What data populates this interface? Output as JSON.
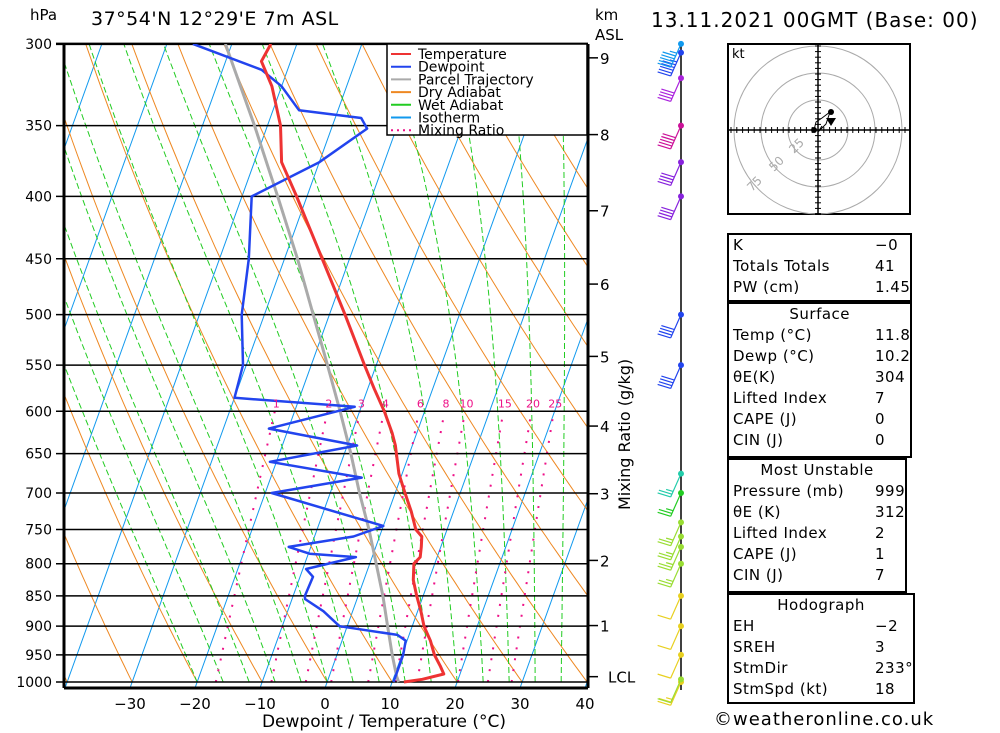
{
  "header": {
    "unit_label": "hPa",
    "location": "37°54'N  12°29'E  7m  ASL",
    "datetime": "13.11.2021  00GMT  (Base: 00)",
    "km_label_1": "km",
    "km_label_2": "ASL"
  },
  "legend": [
    {
      "label": "Temperature",
      "color": "#ee3333",
      "style": "solid"
    },
    {
      "label": "Dewpoint",
      "color": "#2244ee",
      "style": "solid"
    },
    {
      "label": "Parcel Trajectory",
      "color": "#aaaaaa",
      "style": "solid"
    },
    {
      "label": "Dry Adiabat",
      "color": "#ee8822",
      "style": "solid"
    },
    {
      "label": "Wet Adiabat",
      "color": "#22cc22",
      "style": "solid"
    },
    {
      "label": "Isotherm",
      "color": "#1199ee",
      "style": "solid"
    },
    {
      "label": "Mixing Ratio",
      "color": "#ee1188",
      "style": "dotted"
    }
  ],
  "chart_data": {
    "type": "line",
    "title": "37°54'N 12°29'E 7m ASL — Skew-T log-P sounding",
    "xlabel": "Dewpoint / Temperature (°C)",
    "ylabel": "hPa",
    "xlim": [
      -40,
      40
    ],
    "ylim": [
      1000,
      300
    ],
    "x_ticks": [
      -30,
      -20,
      -10,
      0,
      10,
      20,
      30,
      40
    ],
    "y_ticks": [
      300,
      350,
      400,
      450,
      500,
      550,
      600,
      650,
      700,
      750,
      800,
      850,
      900,
      950,
      1000
    ],
    "height_ticks": [
      {
        "label": "9",
        "p": 308
      },
      {
        "label": "8",
        "p": 356
      },
      {
        "label": "7",
        "p": 411
      },
      {
        "label": "6",
        "p": 472
      },
      {
        "label": "5",
        "p": 541
      },
      {
        "label": "4",
        "p": 617
      },
      {
        "label": "3",
        "p": 701
      },
      {
        "label": "2",
        "p": 795
      },
      {
        "label": "1",
        "p": 899
      },
      {
        "label": "LCL",
        "p": 990
      }
    ],
    "right_axis_label": "Mixing Ratio (g/kg)",
    "mixing_ratio_labels": [
      "1",
      "2",
      "3",
      "4",
      "6",
      "8",
      "10",
      "15",
      "20",
      "25"
    ],
    "mixing_ratio_values": [
      1,
      2,
      3,
      4,
      6,
      8,
      10,
      15,
      20,
      25
    ],
    "series": [
      {
        "name": "Temperature",
        "points": [
          [
            1000,
            11.8
          ],
          [
            995,
            14.5
          ],
          [
            985,
            17.5
          ],
          [
            970,
            16.5
          ],
          [
            950,
            15.0
          ],
          [
            925,
            13.6
          ],
          [
            900,
            11.8
          ],
          [
            875,
            10.5
          ],
          [
            850,
            9.0
          ],
          [
            825,
            7.6
          ],
          [
            800,
            6.8
          ],
          [
            790,
            7.4
          ],
          [
            775,
            7.0
          ],
          [
            760,
            6.5
          ],
          [
            750,
            5.2
          ],
          [
            725,
            3.5
          ],
          [
            700,
            1.5
          ],
          [
            675,
            -0.5
          ],
          [
            650,
            -2.0
          ],
          [
            640,
            -2.6
          ],
          [
            625,
            -3.8
          ],
          [
            600,
            -6.2
          ],
          [
            575,
            -9.0
          ],
          [
            550,
            -11.8
          ],
          [
            500,
            -17.6
          ],
          [
            450,
            -24.2
          ],
          [
            400,
            -31.6
          ],
          [
            375,
            -35.8
          ],
          [
            350,
            -38.0
          ],
          [
            325,
            -41.5
          ],
          [
            310,
            -44.5
          ],
          [
            300,
            -44.0
          ]
        ]
      },
      {
        "name": "Dewpoint",
        "points": [
          [
            1000,
            10.2
          ],
          [
            975,
            10.2
          ],
          [
            950,
            10.2
          ],
          [
            925,
            9.8
          ],
          [
            915,
            8.2
          ],
          [
            900,
            -1.2
          ],
          [
            875,
            -4.5
          ],
          [
            855,
            -8.0
          ],
          [
            850,
            -8.2
          ],
          [
            820,
            -8.0
          ],
          [
            808,
            -9.5
          ],
          [
            790,
            -2.5
          ],
          [
            785,
            -9.8
          ],
          [
            775,
            -13.4
          ],
          [
            760,
            -4.0
          ],
          [
            745,
            0.0
          ],
          [
            700,
            -19.0
          ],
          [
            680,
            -6.0
          ],
          [
            660,
            -21.0
          ],
          [
            640,
            -8.5
          ],
          [
            620,
            -23.0
          ],
          [
            595,
            -11.0
          ],
          [
            585,
            -30.0
          ],
          [
            550,
            -30.5
          ],
          [
            500,
            -33.5
          ],
          [
            450,
            -35.5
          ],
          [
            400,
            -38.5
          ],
          [
            375,
            -30.0
          ],
          [
            352,
            -24.5
          ],
          [
            345,
            -26.0
          ],
          [
            340,
            -36.0
          ],
          [
            325,
            -40.0
          ],
          [
            315,
            -44.0
          ],
          [
            300,
            -56.0
          ]
        ]
      },
      {
        "name": "Parcel Trajectory",
        "points": [
          [
            1000,
            11.0
          ],
          [
            990,
            10.4
          ],
          [
            950,
            8.5
          ],
          [
            900,
            6.2
          ],
          [
            850,
            3.8
          ],
          [
            800,
            1.0
          ],
          [
            750,
            -2.0
          ],
          [
            700,
            -5.5
          ],
          [
            650,
            -9.0
          ],
          [
            600,
            -13.0
          ],
          [
            550,
            -17.5
          ],
          [
            500,
            -22.5
          ],
          [
            450,
            -28.0
          ],
          [
            400,
            -34.5
          ],
          [
            350,
            -42.0
          ],
          [
            300,
            -51.0
          ]
        ]
      }
    ],
    "wind_barbs": [
      {
        "p": 1000,
        "color": "#e8d020",
        "speed_kt": 15
      },
      {
        "p": 995,
        "color": "#99dd33",
        "speed_kt": 10
      },
      {
        "p": 950,
        "color": "#e8d020",
        "speed_kt": 10
      },
      {
        "p": 900,
        "color": "#e8d020",
        "speed_kt": 10
      },
      {
        "p": 850,
        "color": "#e8d020",
        "speed_kt": 10
      },
      {
        "p": 800,
        "color": "#99dd33",
        "speed_kt": 15
      },
      {
        "p": 775,
        "color": "#99dd33",
        "speed_kt": 15
      },
      {
        "p": 760,
        "color": "#99dd33",
        "speed_kt": 15
      },
      {
        "p": 740,
        "color": "#99dd33",
        "speed_kt": 15
      },
      {
        "p": 700,
        "color": "#22cc22",
        "speed_kt": 15
      },
      {
        "p": 675,
        "color": "#22ccaa",
        "speed_kt": 15
      },
      {
        "p": 550,
        "color": "#2244ee",
        "speed_kt": 40
      },
      {
        "p": 500,
        "color": "#2244ee",
        "speed_kt": 40
      },
      {
        "p": 400,
        "color": "#8822dd",
        "speed_kt": 40
      },
      {
        "p": 375,
        "color": "#8822dd",
        "speed_kt": 40
      },
      {
        "p": 350,
        "color": "#cc1199",
        "speed_kt": 50
      },
      {
        "p": 320,
        "color": "#aa22dd",
        "speed_kt": 40
      },
      {
        "p": 305,
        "color": "#2244ee",
        "speed_kt": 45
      },
      {
        "p": 300,
        "color": "#1199ee",
        "speed_kt": 45
      }
    ],
    "hodograph": {
      "unit": "kt",
      "ring_labels": [
        "25",
        "50",
        "75"
      ]
    }
  },
  "indices": {
    "rows": [
      {
        "label": "K",
        "value": "−0"
      },
      {
        "label": "Totals Totals",
        "value": "41"
      },
      {
        "label": "PW (cm)",
        "value": "1.45"
      }
    ]
  },
  "surface": {
    "title": "Surface",
    "rows": [
      {
        "label": "Temp (°C)",
        "value": "11.8"
      },
      {
        "label": "Dewp (°C)",
        "value": "10.2"
      },
      {
        "label": "θE(K)",
        "value": "304"
      },
      {
        "label": "Lifted Index",
        "value": "7"
      },
      {
        "label": "CAPE (J)",
        "value": "0"
      },
      {
        "label": "CIN (J)",
        "value": "0"
      }
    ]
  },
  "most_unstable": {
    "title": "Most Unstable",
    "rows": [
      {
        "label": "Pressure (mb)",
        "value": "999"
      },
      {
        "label": "θE (K)",
        "value": "312"
      },
      {
        "label": "Lifted Index",
        "value": "2"
      },
      {
        "label": "CAPE (J)",
        "value": "1"
      },
      {
        "label": "CIN (J)",
        "value": "7"
      }
    ]
  },
  "hodograph_table": {
    "title": "Hodograph",
    "rows": [
      {
        "label": "EH",
        "value": "−2"
      },
      {
        "label": "SREH",
        "value": "3"
      },
      {
        "label": "StmDir",
        "value": "233°"
      },
      {
        "label": "StmSpd (kt)",
        "value": "18"
      }
    ]
  },
  "footer": {
    "copyright": "©weatheronline.co.uk"
  }
}
